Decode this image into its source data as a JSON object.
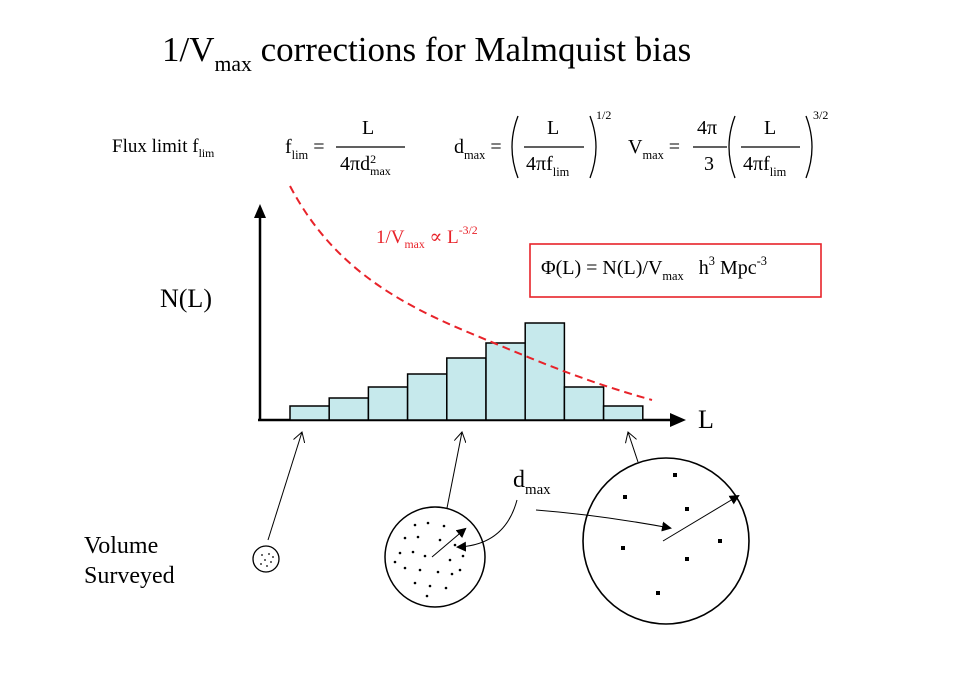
{
  "title": {
    "main": "1/V",
    "sub": "max",
    "rest": " corrections for Malmquist bias"
  },
  "flux_limit": {
    "label": "Flux limit f",
    "sub": "lim"
  },
  "eq_flim": {
    "lhs": "f",
    "lhs_sub": "lim",
    "eq": "=",
    "num": "L",
    "den": "4πd",
    "den_sup": "2",
    "den_sub": "max"
  },
  "eq_dmax": {
    "lhs": "d",
    "lhs_sub": "max",
    "eq": "=",
    "num": "L",
    "den": "4πf",
    "den_sub": "lim",
    "power": "1/2"
  },
  "eq_vmax": {
    "lhs": "V",
    "lhs_sub": "max",
    "eq": "=",
    "coef_num": "4π",
    "coef_den": "3",
    "num": "L",
    "den": "4πf",
    "den_sub": "lim",
    "power": "3/2"
  },
  "curve_label": {
    "main": "1/V",
    "sub": "max",
    "rest": " ∝ L",
    "sup": "-3/2"
  },
  "phi_box": {
    "text": "Φ(L) = N(L)/V",
    "sub": "max",
    "units": "   h",
    "sup1": "3",
    "units2": " Mpc",
    "sup2": "-3"
  },
  "axis": {
    "y_label": "N(L)",
    "x_label": "L"
  },
  "histogram": {
    "bar_heights": [
      0.14,
      0.22,
      0.33,
      0.46,
      0.62,
      0.77,
      0.97,
      0.33,
      0.14
    ]
  },
  "dmax_label": {
    "main": "d",
    "sub": "max"
  },
  "volume_label": {
    "line1": "Volume",
    "line2": "Surveyed"
  },
  "colors": {
    "bars": "#c6e9ec",
    "curve": "#e8232a",
    "box": "#e8232a",
    "ink": "#000000"
  }
}
